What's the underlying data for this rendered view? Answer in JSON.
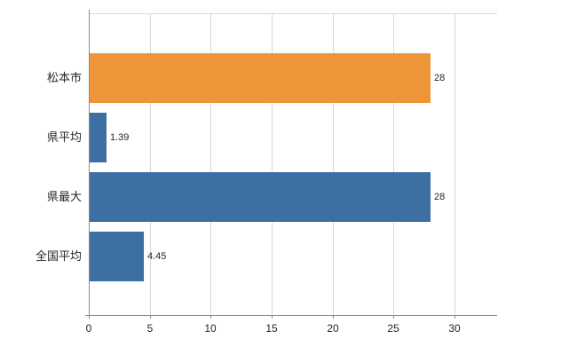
{
  "chart_data": {
    "type": "bar",
    "orientation": "horizontal",
    "title": "",
    "categories": [
      "松本市",
      "県平均",
      "県最大",
      "全国平均"
    ],
    "values": [
      28,
      1.39,
      28,
      4.45
    ],
    "value_labels": [
      "28",
      "1.39",
      "28",
      "4.45"
    ],
    "bar_colors": [
      "#ee9539",
      "#3d6fa3",
      "#3d6fa3",
      "#3d6fa3"
    ],
    "x_ticks": [
      "0",
      "5",
      "10",
      "15",
      "20",
      "25",
      "30"
    ],
    "x_tick_values": [
      0,
      5,
      10,
      15,
      20,
      25,
      30
    ],
    "xlim": [
      0,
      33.5
    ],
    "grid": true,
    "legend": "none",
    "colors": {
      "grid": "#d9d9d9",
      "axis": "#8c8c8c",
      "text": "#262626",
      "background": "#ffffff"
    }
  }
}
